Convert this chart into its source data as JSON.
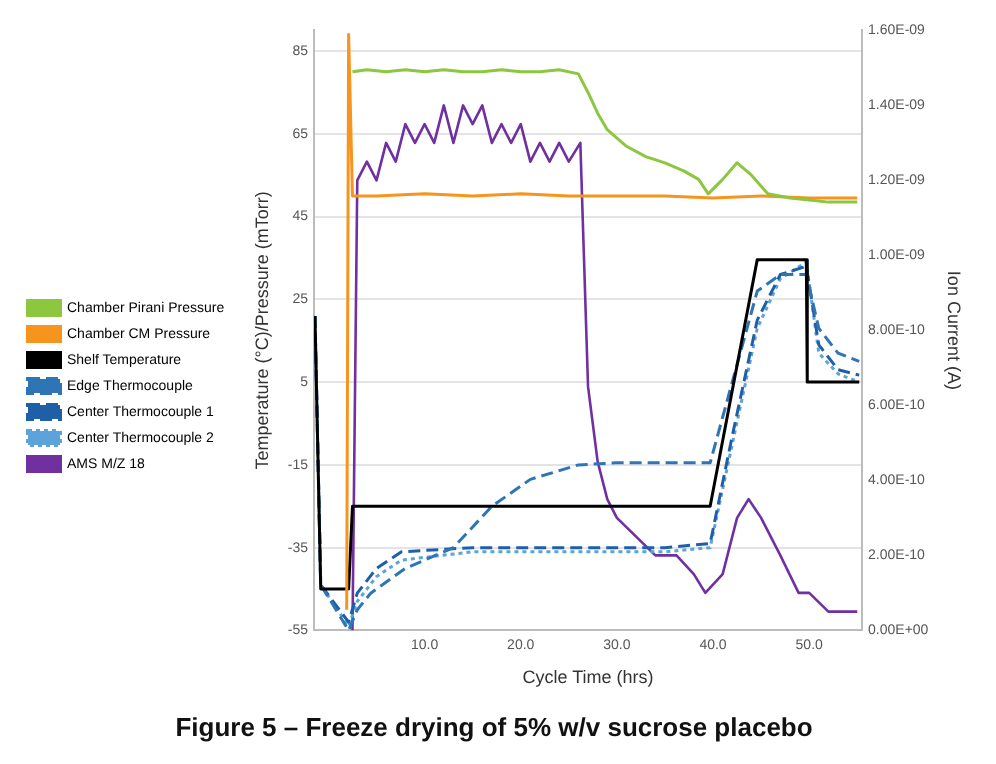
{
  "chart_data": {
    "type": "line",
    "title": "Figure 5 – Freeze drying of 5% w/v sucrose placebo",
    "xlabel": "Cycle Time (hrs)",
    "ylabel": "Temperature (°C)/Pressure (mTorr)",
    "y2label": "Ion Current (A)",
    "xlim": [
      -1.5,
      55.5
    ],
    "xticks": [
      {
        "value": 10,
        "label": "10.0"
      },
      {
        "value": 20,
        "label": "20.0"
      },
      {
        "value": 30,
        "label": "30.0"
      },
      {
        "value": 40,
        "label": "40.0"
      },
      {
        "value": 50,
        "label": "50.0"
      }
    ],
    "ylim": [
      -55,
      90
    ],
    "yticks": [
      -55,
      -35,
      -15,
      5,
      25,
      45,
      65,
      85
    ],
    "y2lim": [
      0,
      1.6e-09
    ],
    "y2ticks": [
      {
        "value": 0,
        "label": "0.00E+00"
      },
      {
        "value": 2e-10,
        "label": "2.00E-10"
      },
      {
        "value": 4e-10,
        "label": "4.00E-10"
      },
      {
        "value": 6e-10,
        "label": "6.00E-10"
      },
      {
        "value": 8e-10,
        "label": "8.00E-10"
      },
      {
        "value": 1e-09,
        "label": "1.00E-09"
      },
      {
        "value": 1.2e-09,
        "label": "1.20E-09"
      },
      {
        "value": 1.4e-09,
        "label": "1.40E-09"
      },
      {
        "value": 1.6e-09,
        "label": "1.60E-09"
      }
    ],
    "grid": "y",
    "legend": "left",
    "marker": "none",
    "series": [
      {
        "name": "Chamber Pirani Pressure",
        "color": "#8dc63f",
        "line_style": "solid",
        "x": [
          2.5,
          4,
          6,
          8,
          10,
          12,
          14,
          16,
          18,
          20,
          22,
          24,
          26,
          27,
          28,
          29,
          31,
          33,
          35,
          37,
          38.5,
          39.5,
          41,
          42.5,
          44,
          45.7,
          48,
          50,
          52,
          55
        ],
        "values": [
          80,
          80.5,
          80,
          80.5,
          80,
          80.5,
          80,
          80,
          80.5,
          80,
          80,
          80.5,
          79.5,
          75,
          70,
          66,
          62,
          59.5,
          58,
          56,
          54,
          50.5,
          54,
          58,
          55,
          50.5,
          49.5,
          49,
          48.5,
          48.5
        ]
      },
      {
        "name": "Chamber CM Pressure",
        "color": "#f7941d",
        "line_style": "solid",
        "x": [
          1.9,
          2.1,
          2.5,
          5,
          10,
          15,
          20,
          25,
          30,
          35,
          40,
          45,
          50,
          55
        ],
        "values": [
          -50,
          89,
          50,
          50,
          50.5,
          50,
          50.5,
          50,
          50,
          50,
          49.5,
          50,
          49.5,
          49.5
        ]
      },
      {
        "name": "Shelf Temperature",
        "color": "#000000",
        "line_style": "solid",
        "x": [
          -1.4,
          -0.8,
          2.1,
          2.5,
          10,
          20,
          30,
          39.7,
          44.6,
          49.7,
          49.8,
          55.2
        ],
        "values": [
          21,
          -45,
          -45,
          -25,
          -25,
          -25,
          -25,
          -25,
          34.6,
          34.6,
          5,
          5
        ]
      },
      {
        "name": "Edge Thermocouple",
        "color": "#2e75b6",
        "line_style": "dashed",
        "x": [
          -1.4,
          -0.8,
          2.1,
          3,
          4.4,
          8,
          13,
          17,
          21,
          26,
          30,
          35,
          39.7,
          42,
          44.6,
          47,
          49.7,
          51,
          53,
          55.2
        ],
        "values": [
          21,
          -44,
          -55,
          -50,
          -46,
          -40,
          -35,
          -25,
          -18.5,
          -15,
          -14.5,
          -14.5,
          -14.5,
          5,
          27,
          31,
          31,
          18,
          12,
          10
        ]
      },
      {
        "name": "Center Thermocouple 1",
        "color": "#1f5fa8",
        "line_style": "dashed",
        "x": [
          -1.4,
          -0.8,
          2.1,
          3,
          5,
          7.6,
          15,
          25,
          35,
          39.7,
          42,
          44.6,
          47,
          49.7,
          51,
          53,
          55.2
        ],
        "values": [
          21,
          -44,
          -53,
          -46,
          -40,
          -36,
          -35,
          -35,
          -35,
          -34,
          -8,
          20,
          31,
          33,
          14,
          8,
          6.7
        ]
      },
      {
        "name": "Center Thermocouple 2",
        "color": "#5ba3d9",
        "line_style": "dotted",
        "x": [
          -1.4,
          -0.8,
          2.1,
          3,
          5,
          7.6,
          15,
          25,
          35,
          39.7,
          42,
          44.6,
          47,
          49.7,
          51,
          53,
          55.2
        ],
        "values": [
          21,
          -44,
          -54,
          -48,
          -42,
          -38,
          -36,
          -36,
          -36,
          -35,
          -10,
          18,
          30,
          34,
          12,
          7,
          5
        ]
      },
      {
        "name": "AMS M/Z 18",
        "color": "#7030a0",
        "axis": "y2",
        "line_style": "solid",
        "x": [
          2.5,
          3,
          4,
          5,
          6,
          7,
          8,
          9,
          10,
          11,
          12,
          13,
          14,
          15,
          16,
          17,
          18,
          19,
          20,
          21,
          22,
          23,
          24,
          25,
          26.2,
          27,
          28,
          29,
          30,
          32,
          34,
          36.2,
          38,
          39.2,
          41,
          42.5,
          43.7,
          45,
          47,
          48.9,
          50,
          52,
          55
        ],
        "values": [
          0,
          1.2e-09,
          1.25e-09,
          1.2e-09,
          1.3e-09,
          1.25e-09,
          1.35e-09,
          1.3e-09,
          1.35e-09,
          1.3e-09,
          1.4e-09,
          1.3e-09,
          1.4e-09,
          1.35e-09,
          1.4e-09,
          1.3e-09,
          1.35e-09,
          1.3e-09,
          1.35e-09,
          1.25e-09,
          1.3e-09,
          1.25e-09,
          1.3e-09,
          1.25e-09,
          1.3e-09,
          6.5e-10,
          4.5e-10,
          3.5e-10,
          3e-10,
          2.5e-10,
          2e-10,
          2e-10,
          1.5e-10,
          1e-10,
          1.5e-10,
          3e-10,
          3.5e-10,
          3e-10,
          2e-10,
          1e-10,
          1e-10,
          5e-11,
          5e-11
        ]
      }
    ]
  }
}
